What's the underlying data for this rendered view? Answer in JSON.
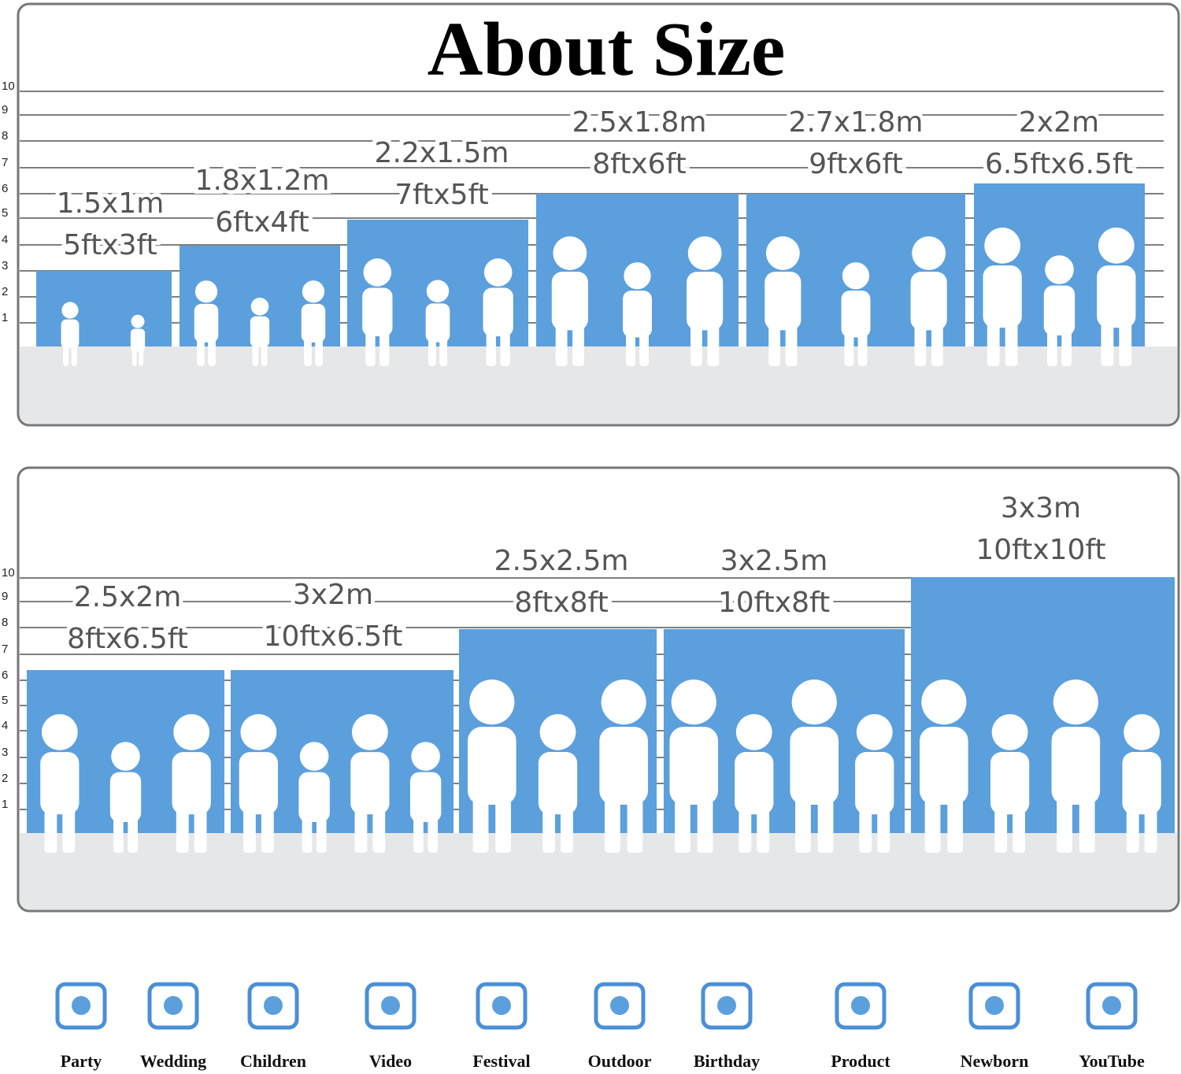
{
  "title": "About Size",
  "panels": [
    {
      "scale": [
        10,
        9,
        8,
        7,
        6,
        5,
        4,
        3,
        2,
        1
      ],
      "items": [
        {
          "metric": "1.5x1m",
          "imperial": "5ftx3ft"
        },
        {
          "metric": "1.8x1.2m",
          "imperial": "6ftx4ft"
        },
        {
          "metric": "2.2x1.5m",
          "imperial": "7ftx5ft"
        },
        {
          "metric": "2.5x1.8m",
          "imperial": "8ftx6ft"
        },
        {
          "metric": "2.7x1.8m",
          "imperial": "9ftx6ft"
        },
        {
          "metric": "2x2m",
          "imperial": "6.5ftx6.5ft"
        }
      ]
    },
    {
      "scale": [
        10,
        9,
        8,
        7,
        6,
        5,
        4,
        3,
        2,
        1
      ],
      "items": [
        {
          "metric": "2.5x2m",
          "imperial": "8ftx6.5ft"
        },
        {
          "metric": "3x2m",
          "imperial": "10ftx6.5ft"
        },
        {
          "metric": "2.5x2.5m",
          "imperial": "8ftx8ft"
        },
        {
          "metric": "3x2.5m",
          "imperial": "10ftx8ft"
        },
        {
          "metric": "3x3m",
          "imperial": "10ftx10ft"
        }
      ]
    }
  ],
  "uses": [
    "Party",
    "Wedding",
    "Children",
    "Video",
    "Festival",
    "Outdoor",
    "Birthday",
    "Product",
    "Newborn",
    "YouTube"
  ]
}
